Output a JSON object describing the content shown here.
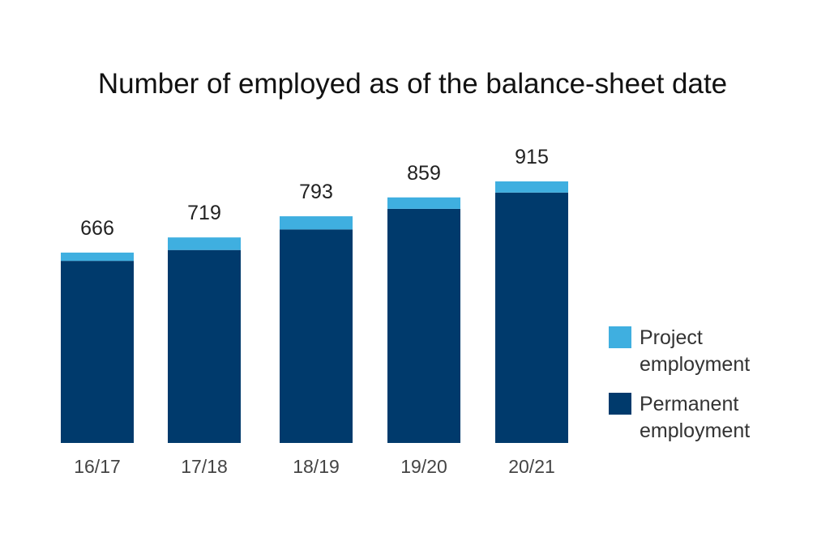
{
  "chart_data": {
    "type": "bar",
    "stacked": true,
    "title": "Number of employed as of the balance-sheet date",
    "categories": [
      "16/17",
      "17/18",
      "18/19",
      "19/20",
      "20/21"
    ],
    "totals": [
      666,
      719,
      793,
      859,
      915
    ],
    "series": [
      {
        "name": "Permanent employment",
        "values": [
          637,
          675,
          747,
          819,
          876
        ],
        "color": "#003a6c"
      },
      {
        "name": "Project employment",
        "values": [
          29,
          44,
          46,
          40,
          39
        ],
        "color": "#3fafe0"
      }
    ],
    "ylim": [
      0,
      915
    ],
    "grid": false,
    "legend_position": "right"
  },
  "legend": {
    "project_label": "Project employment",
    "permanent_label": "Permanent employment"
  }
}
